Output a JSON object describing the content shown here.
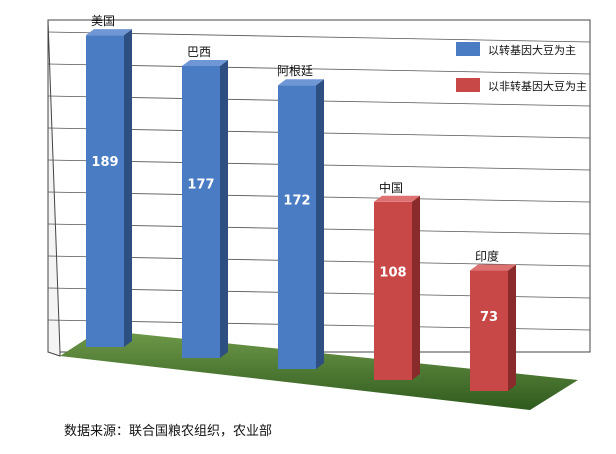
{
  "chart_data": {
    "type": "bar",
    "categories": [
      "美国",
      "巴西",
      "阿根廷",
      "中国",
      "印度"
    ],
    "values": [
      189,
      177,
      172,
      108,
      73
    ],
    "groups": [
      "以转基因大豆为主",
      "以转基因大豆为主",
      "以转基因大豆为主",
      "以非转基因大豆为主",
      "以非转基因大豆为主"
    ],
    "legend": [
      {
        "label": "以转基因大豆为主",
        "color": "#4a7cc4"
      },
      {
        "label": "以非转基因大豆为主",
        "color": "#c84848"
      }
    ],
    "ylim": [
      0,
      200
    ],
    "grid": true,
    "legend_position": "top-right",
    "title": "",
    "xlabel": "",
    "ylabel": ""
  },
  "source_note": "数据来源：联合国粮农组织，农业部"
}
